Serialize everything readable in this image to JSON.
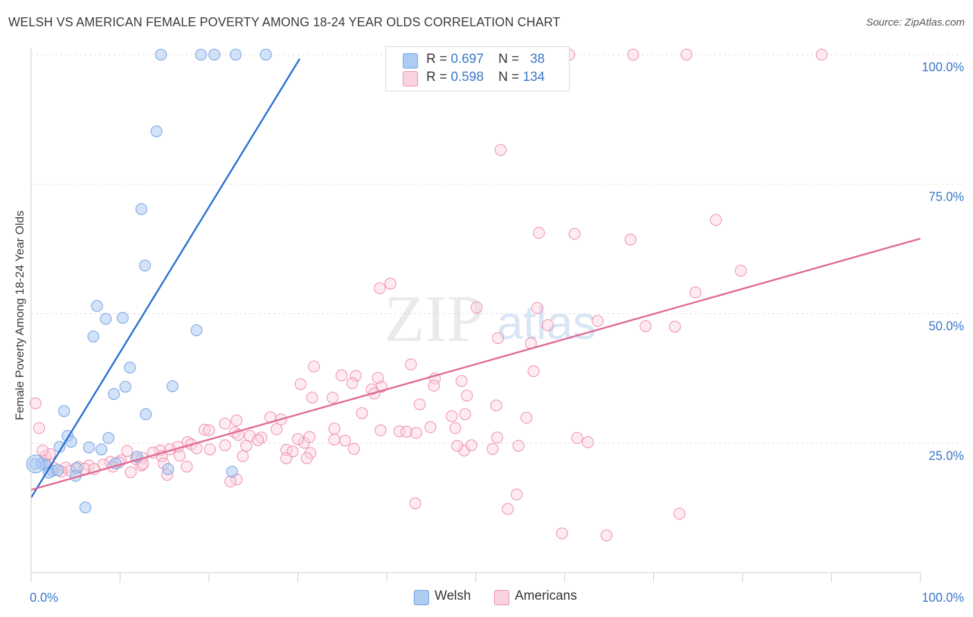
{
  "title": "WELSH VS AMERICAN FEMALE POVERTY AMONG 18-24 YEAR OLDS CORRELATION CHART",
  "source": "Source: ZipAtlas.com",
  "watermark": {
    "zip": "ZIP",
    "atlas": "atlas"
  },
  "legend": [
    {
      "r_label": "R =",
      "r_value": "0.697",
      "n_label": "N =",
      "n_value": "38",
      "color": "#aecbf2"
    },
    {
      "r_label": "R =",
      "r_value": "0.598",
      "n_label": "N =",
      "n_value": "134",
      "color": "#f7b8cb"
    }
  ],
  "bottom_legend": [
    {
      "label": "Welsh",
      "color": "#aecbf2"
    },
    {
      "label": "Americans",
      "color": "#f7b8cb"
    }
  ],
  "chart_data": {
    "type": "scatter",
    "title": "WELSH VS AMERICAN FEMALE POVERTY AMONG 18-24 YEAR OLDS CORRELATION CHART",
    "xlabel": "",
    "ylabel": "Female Poverty Among 18-24 Year Olds",
    "xlim": [
      0,
      100
    ],
    "ylim": [
      0,
      100
    ],
    "x_tick_labels": [
      "0.0%",
      "100.0%"
    ],
    "y_tick_labels": [
      "25.0%",
      "50.0%",
      "75.0%",
      "100.0%"
    ],
    "y_ticks": [
      25,
      50,
      75,
      100
    ],
    "grid": true,
    "legend_position": "top-center",
    "colors": {
      "welsh": "#6ea1e3",
      "americans": "#ee8aa9",
      "welsh_line": "#2a6fcf",
      "americans_line": "#e06b93"
    },
    "series": [
      {
        "name": "Welsh",
        "r": 0.697,
        "n": 38,
        "trend": {
          "x": [
            0,
            30.2
          ],
          "y": [
            14.5,
            99.2
          ]
        },
        "points": [
          [
            14.6,
            100
          ],
          [
            19.1,
            100
          ],
          [
            20.6,
            100
          ],
          [
            23.0,
            100
          ],
          [
            26.4,
            100
          ],
          [
            14.1,
            85.2
          ],
          [
            12.4,
            70.2
          ],
          [
            12.8,
            59.3
          ],
          [
            7.4,
            51.5
          ],
          [
            10.3,
            49.2
          ],
          [
            8.4,
            49.0
          ],
          [
            7.0,
            45.6
          ],
          [
            18.6,
            46.8
          ],
          [
            11.1,
            39.6
          ],
          [
            10.6,
            35.9
          ],
          [
            9.3,
            34.5
          ],
          [
            15.9,
            36.0
          ],
          [
            12.9,
            30.6
          ],
          [
            3.7,
            31.2
          ],
          [
            4.1,
            26.4
          ],
          [
            4.5,
            25.3
          ],
          [
            8.7,
            26.0
          ],
          [
            3.2,
            24.3
          ],
          [
            6.5,
            24.2
          ],
          [
            7.9,
            23.8
          ],
          [
            11.9,
            22.4
          ],
          [
            0.4,
            21.0
          ],
          [
            1.2,
            21.1
          ],
          [
            1.7,
            20.7
          ],
          [
            2.4,
            19.7
          ],
          [
            2.0,
            19.3
          ],
          [
            3.0,
            19.8
          ],
          [
            5.1,
            20.2
          ],
          [
            9.5,
            21.1
          ],
          [
            15.4,
            20.0
          ],
          [
            22.6,
            19.5
          ],
          [
            5.0,
            18.7
          ],
          [
            6.1,
            12.6
          ]
        ]
      },
      {
        "name": "Americans",
        "r": 0.598,
        "n": 134,
        "trend": {
          "x": [
            0,
            100
          ],
          "y": [
            16.0,
            64.5
          ]
        },
        "points": [
          [
            60.5,
            100
          ],
          [
            67.7,
            100
          ],
          [
            73.7,
            100
          ],
          [
            88.9,
            100
          ],
          [
            52.8,
            81.6
          ],
          [
            77.0,
            68.1
          ],
          [
            57.1,
            65.6
          ],
          [
            61.1,
            65.4
          ],
          [
            67.4,
            64.3
          ],
          [
            79.8,
            58.3
          ],
          [
            74.7,
            54.1
          ],
          [
            40.4,
            55.8
          ],
          [
            50.1,
            51.2
          ],
          [
            39.2,
            54.9
          ],
          [
            56.9,
            51.1
          ],
          [
            63.7,
            48.6
          ],
          [
            58.1,
            47.8
          ],
          [
            69.1,
            47.6
          ],
          [
            72.4,
            47.5
          ],
          [
            52.5,
            45.3
          ],
          [
            56.2,
            44.3
          ],
          [
            42.7,
            40.2
          ],
          [
            31.8,
            39.8
          ],
          [
            34.9,
            38.1
          ],
          [
            36.5,
            38.0
          ],
          [
            56.5,
            38.9
          ],
          [
            39.4,
            35.9
          ],
          [
            38.3,
            35.4
          ],
          [
            39.0,
            37.6
          ],
          [
            45.4,
            37.5
          ],
          [
            48.4,
            37.0
          ],
          [
            45.3,
            36.1
          ],
          [
            36.1,
            36.6
          ],
          [
            38.6,
            34.6
          ],
          [
            30.3,
            36.4
          ],
          [
            31.6,
            33.8
          ],
          [
            33.9,
            33.8
          ],
          [
            49.0,
            34.2
          ],
          [
            52.3,
            32.3
          ],
          [
            43.7,
            32.5
          ],
          [
            47.3,
            30.2
          ],
          [
            48.8,
            30.6
          ],
          [
            47.7,
            27.9
          ],
          [
            37.2,
            30.8
          ],
          [
            28.1,
            29.6
          ],
          [
            26.9,
            30.0
          ],
          [
            23.1,
            29.4
          ],
          [
            21.8,
            28.8
          ],
          [
            19.5,
            27.6
          ],
          [
            20.0,
            27.5
          ],
          [
            22.9,
            27.1
          ],
          [
            23.3,
            26.6
          ],
          [
            24.6,
            26.4
          ],
          [
            25.9,
            26.1
          ],
          [
            27.6,
            27.7
          ],
          [
            34.1,
            27.8
          ],
          [
            39.3,
            27.5
          ],
          [
            41.4,
            27.3
          ],
          [
            42.2,
            27.2
          ],
          [
            43.3,
            27.0
          ],
          [
            44.9,
            28.1
          ],
          [
            55.7,
            29.9
          ],
          [
            52.4,
            26.1
          ],
          [
            61.4,
            26.0
          ],
          [
            62.6,
            25.2
          ],
          [
            54.8,
            24.5
          ],
          [
            34.1,
            25.7
          ],
          [
            35.3,
            25.5
          ],
          [
            30.7,
            25.1
          ],
          [
            25.5,
            25.6
          ],
          [
            17.6,
            25.2
          ],
          [
            18.0,
            24.8
          ],
          [
            18.6,
            24.0
          ],
          [
            16.5,
            24.3
          ],
          [
            15.6,
            23.8
          ],
          [
            14.5,
            23.6
          ],
          [
            13.7,
            23.2
          ],
          [
            10.8,
            23.5
          ],
          [
            20.1,
            23.8
          ],
          [
            21.8,
            24.6
          ],
          [
            24.2,
            24.5
          ],
          [
            28.7,
            23.7
          ],
          [
            29.4,
            23.4
          ],
          [
            31.4,
            23.1
          ],
          [
            36.3,
            23.9
          ],
          [
            48.7,
            23.6
          ],
          [
            47.9,
            24.5
          ],
          [
            49.5,
            24.6
          ],
          [
            51.9,
            23.9
          ],
          [
            12.5,
            22.2
          ],
          [
            11.8,
            21.9
          ],
          [
            14.7,
            22.5
          ],
          [
            16.7,
            22.6
          ],
          [
            23.8,
            22.5
          ],
          [
            28.7,
            22.1
          ],
          [
            31.0,
            22.1
          ],
          [
            10.1,
            21.7
          ],
          [
            8.9,
            21.4
          ],
          [
            9.9,
            21.3
          ],
          [
            8.1,
            20.9
          ],
          [
            6.5,
            20.7
          ],
          [
            5.3,
            20.4
          ],
          [
            3.9,
            20.3
          ],
          [
            2.6,
            20.2
          ],
          [
            1.5,
            21.6
          ],
          [
            1.6,
            22.5
          ],
          [
            2.1,
            22.9
          ],
          [
            1.3,
            23.6
          ],
          [
            4.4,
            19.7
          ],
          [
            3.4,
            19.5
          ],
          [
            6.0,
            20.1
          ],
          [
            7.1,
            20.0
          ],
          [
            11.2,
            19.4
          ],
          [
            12.4,
            20.7
          ],
          [
            14.9,
            21.1
          ],
          [
            17.5,
            20.5
          ],
          [
            12.6,
            21.0
          ],
          [
            15.3,
            18.9
          ],
          [
            23.1,
            18.0
          ],
          [
            0.5,
            32.7
          ],
          [
            0.9,
            27.9
          ],
          [
            43.2,
            13.4
          ],
          [
            53.6,
            12.3
          ],
          [
            54.6,
            15.1
          ],
          [
            72.9,
            11.4
          ],
          [
            59.7,
            7.6
          ],
          [
            64.7,
            7.2
          ],
          [
            31.3,
            26.2
          ],
          [
            22.4,
            17.6
          ],
          [
            30.0,
            25.8
          ],
          [
            9.2,
            20.5
          ]
        ]
      }
    ]
  }
}
